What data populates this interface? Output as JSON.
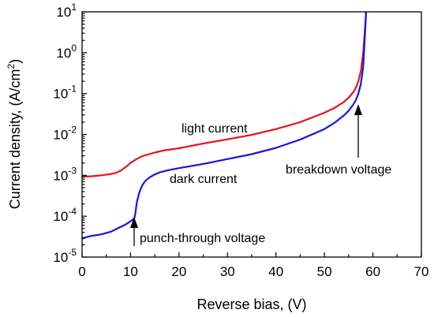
{
  "chart_data": {
    "type": "line",
    "title": "",
    "xlabel": "Reverse bias, (V)",
    "ylabel_main": "Current density, (A/cm",
    "ylabel_sup": "2",
    "ylabel_close": ")",
    "y_scale": "log",
    "xlim": [
      0,
      70
    ],
    "ylim": [
      1e-05,
      10
    ],
    "x_ticks": [
      0,
      10,
      20,
      30,
      40,
      50,
      60,
      70
    ],
    "y_ticks": [
      {
        "value": 1e-05,
        "base": "10",
        "exp": "-5"
      },
      {
        "value": 0.0001,
        "base": "10",
        "exp": "-4"
      },
      {
        "value": 0.001,
        "base": "10",
        "exp": "-3"
      },
      {
        "value": 0.01,
        "base": "10",
        "exp": "-2"
      },
      {
        "value": 0.1,
        "base": "10",
        "exp": "-1"
      },
      {
        "value": 1,
        "base": "10",
        "exp": "0"
      },
      {
        "value": 10,
        "base": "10",
        "exp": "1"
      }
    ],
    "grid": false,
    "series": [
      {
        "color": "#e8141c",
        "x": [
          0,
          2,
          4,
          6,
          7,
          8,
          9,
          10,
          11,
          12,
          13,
          15,
          17,
          20,
          25,
          30,
          35,
          40,
          45,
          50,
          52,
          54,
          55,
          56,
          56.5,
          57,
          57.5,
          58,
          58.3,
          58.6
        ],
        "y": [
          0.00092,
          0.00095,
          0.001,
          0.00108,
          0.00115,
          0.0013,
          0.0016,
          0.002,
          0.0024,
          0.0028,
          0.0031,
          0.0036,
          0.0041,
          0.0046,
          0.006,
          0.0076,
          0.0098,
          0.0135,
          0.02,
          0.034,
          0.044,
          0.062,
          0.08,
          0.11,
          0.14,
          0.2,
          0.35,
          1.0,
          3.0,
          10
        ]
      },
      {
        "color": "#1414e6",
        "x": [
          0,
          1,
          2,
          4,
          6,
          8,
          9,
          10,
          10.5,
          10.8,
          11,
          11.3,
          11.7,
          12,
          12.5,
          13,
          14,
          15,
          16,
          18,
          20,
          25,
          30,
          35,
          40,
          45,
          50,
          52,
          54,
          55,
          56,
          56.5,
          57,
          57.5,
          58,
          58.3,
          58.6
        ],
        "y": [
          2.8e-05,
          3.1e-05,
          3.3e-05,
          3.6e-05,
          4.2e-05,
          5.5e-05,
          6.3e-05,
          7.5e-05,
          8.3e-05,
          9e-05,
          0.00012,
          0.00022,
          0.00034,
          0.00044,
          0.00059,
          0.00072,
          0.0009,
          0.00105,
          0.00118,
          0.00135,
          0.0015,
          0.0019,
          0.0025,
          0.0033,
          0.0047,
          0.0075,
          0.0135,
          0.019,
          0.029,
          0.038,
          0.055,
          0.07,
          0.1,
          0.17,
          0.45,
          2.0,
          10
        ]
      }
    ],
    "annotations": [
      {
        "text": "light current"
      },
      {
        "text": "dark current"
      },
      {
        "text": "punch-through voltage",
        "arrow_at": {
          "x": 11,
          "y": 9e-05
        }
      },
      {
        "text": "breakdown voltage",
        "arrow_at": {
          "x": 58,
          "y": 0.06
        }
      }
    ]
  }
}
